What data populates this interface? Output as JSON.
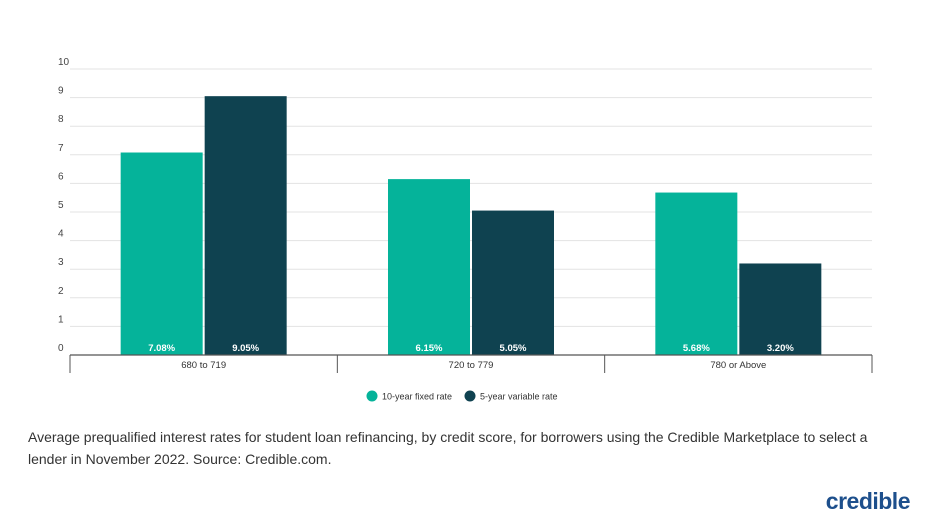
{
  "chart_data": {
    "type": "bar",
    "categories": [
      "680 to 719",
      "720 to 779",
      "780 or Above"
    ],
    "series": [
      {
        "name": "10-year fixed rate",
        "values": [
          7.08,
          6.15,
          5.68
        ],
        "labels": [
          "7.08%",
          "6.15%",
          "5.68%"
        ],
        "color": "#05b39a"
      },
      {
        "name": "5-year variable rate",
        "values": [
          9.05,
          5.05,
          3.2
        ],
        "labels": [
          "9.05%",
          "5.05%",
          "3.20%"
        ],
        "color": "#0f4250"
      }
    ],
    "ylim": [
      0,
      10
    ],
    "yticks": [
      "0",
      "1",
      "2",
      "3",
      "4",
      "5",
      "6",
      "7",
      "8",
      "9",
      "10"
    ],
    "grid": true,
    "legend_placement": "bottom-center",
    "title": "",
    "xlabel": "",
    "ylabel": ""
  },
  "caption": "Average prequalified interest rates for student loan refinancing, by credit score, for borrowers using the Credible Marketplace to select a lender in November 2022. Source: Credible.com.",
  "logo": "credible"
}
